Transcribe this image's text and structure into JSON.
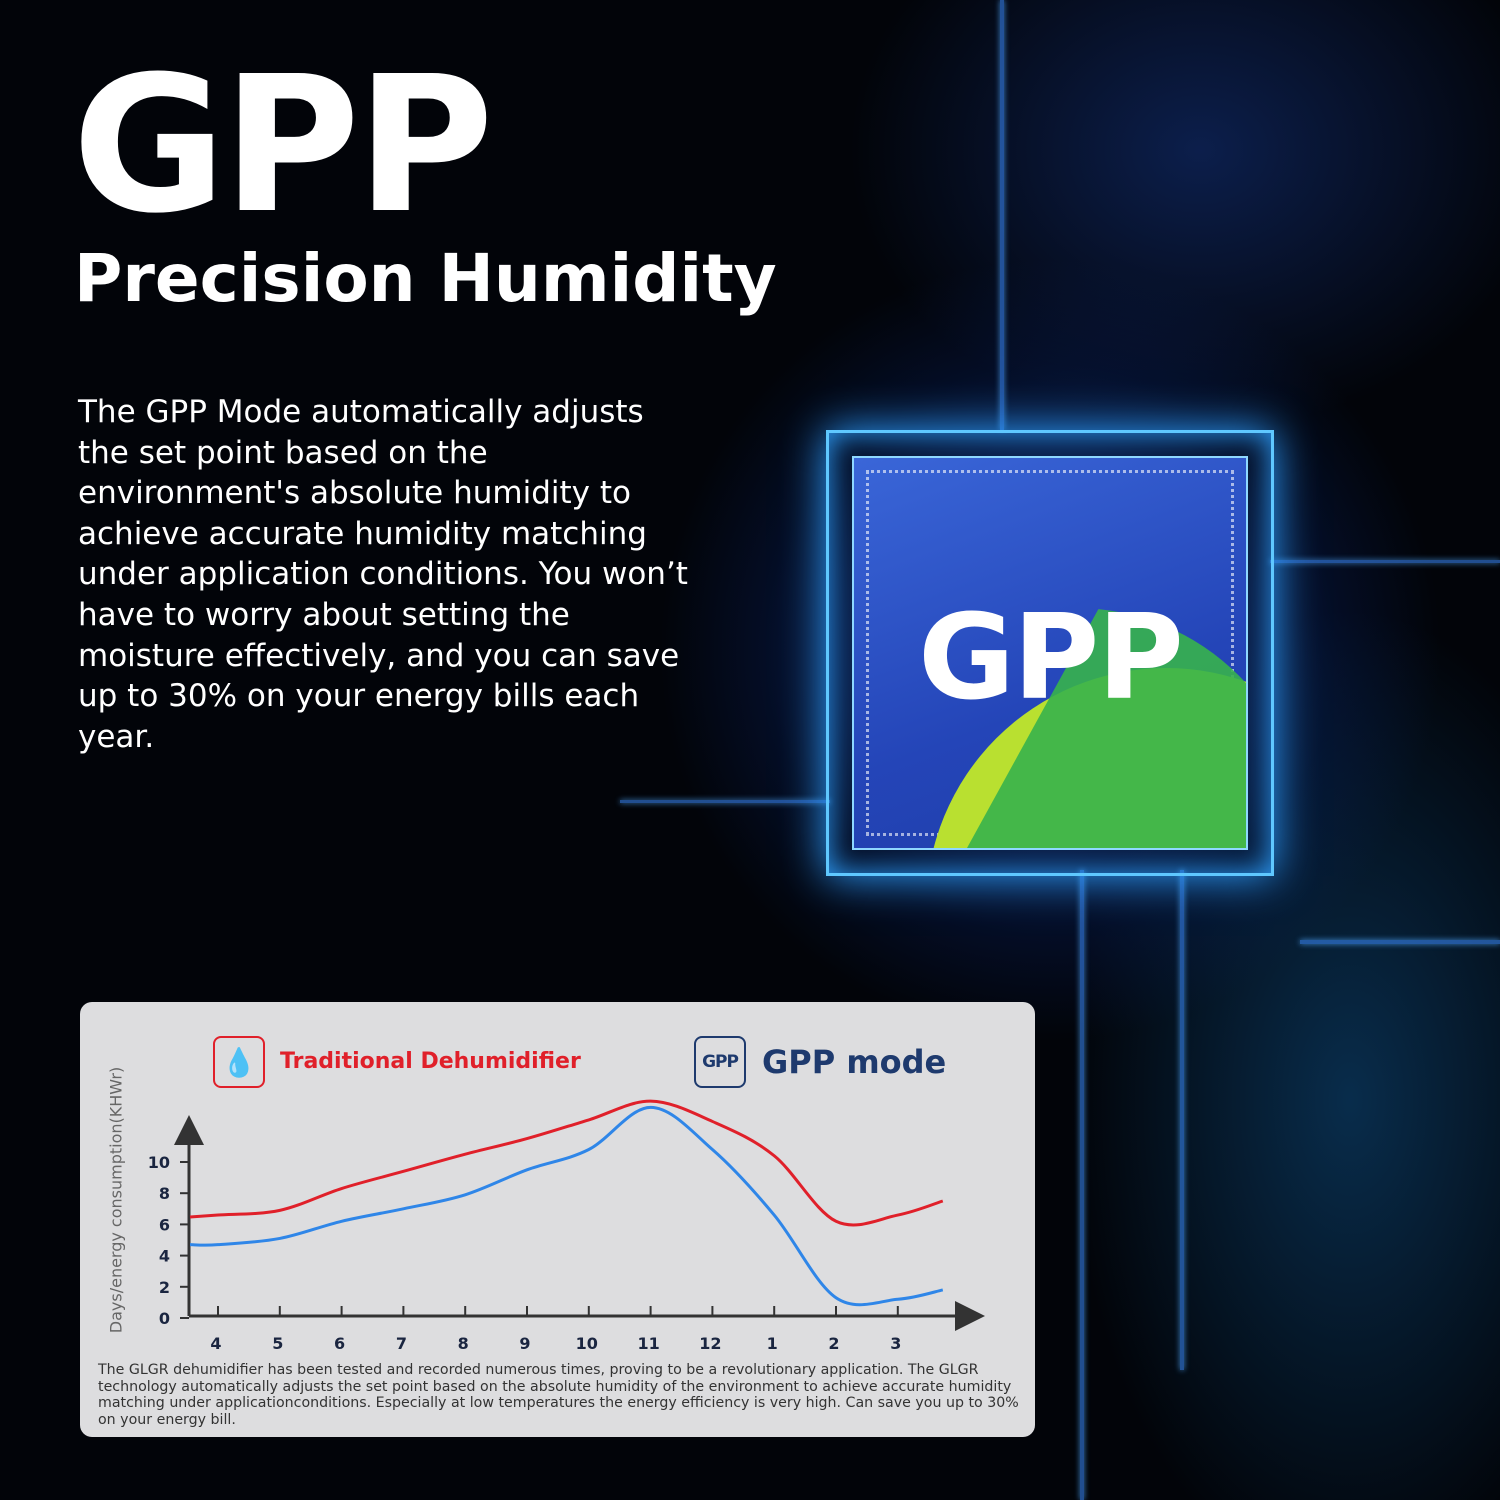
{
  "header": {
    "title": "GPP",
    "subtitle": "Precision Humidity",
    "body": "The GPP Mode automatically adjusts the set point based on the environment's absolute humidity to achieve accurate humidity matching under application conditions. You won’t have to worry about setting the moisture effectively, and you can save up to 30% on your energy bills each year."
  },
  "chip": {
    "label": "GPP",
    "colors": {
      "chip": "#2a55c8",
      "glow": "#5fc8ff",
      "accent_green": "#37b24d",
      "accent_lime": "#b9e030"
    }
  },
  "legend": {
    "traditional": {
      "label": "Traditional Dehumidifier",
      "icon": "water-drops-icon",
      "color": "#e0202a"
    },
    "gpp": {
      "label": "GPP mode",
      "icon_text": "GPP",
      "color": "#1e3a6e"
    }
  },
  "note": "The GLGR dehumidifier has been tested and recorded numerous times, proving to be a revolutionary application. The GLGR technology automatically adjusts the set point based on the absolute humidity of the environment to achieve accurate humidity matching under applicationconditions.  Especially at low temperatures the energy efficiency is very high. Can save you up to 30% on your energy bill.",
  "chart_data": {
    "type": "line",
    "title": "",
    "xlabel": "",
    "ylabel": "Days/energy consumption(KHWr)",
    "categories": [
      "4",
      "5",
      "6",
      "7",
      "8",
      "9",
      "10",
      "11",
      "12",
      "1",
      "2",
      "3"
    ],
    "yticks": [
      0,
      2,
      4,
      6,
      8,
      10
    ],
    "ylim": [
      0,
      14
    ],
    "grid": false,
    "legend_placement": "top",
    "series": [
      {
        "name": "Traditional Dehumidifier",
        "color": "#e0202a",
        "values": [
          6.6,
          6.9,
          8.3,
          9.4,
          10.5,
          11.5,
          12.7,
          13.9,
          12.6,
          10.4,
          6.2,
          6.6
        ]
      },
      {
        "name": "GPP mode",
        "color": "#2f86e8",
        "values": [
          4.7,
          5.1,
          6.2,
          7.0,
          7.9,
          9.5,
          10.8,
          13.5,
          10.8,
          6.6,
          1.3,
          1.2
        ]
      }
    ]
  }
}
